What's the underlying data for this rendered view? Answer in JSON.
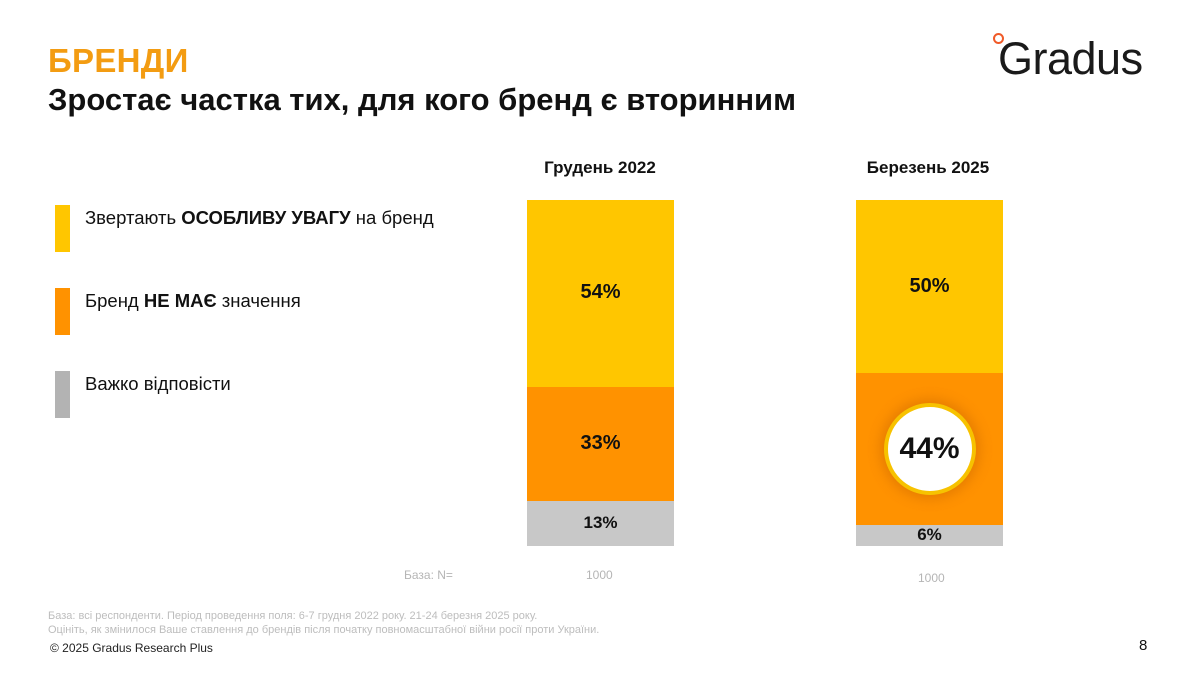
{
  "header": {
    "section": "БРЕНДИ",
    "headline": "Зростає частка тих, для кого бренд є вторинним"
  },
  "logo": {
    "text": "Gradus",
    "accent_color": "#f05a28"
  },
  "legend": [
    {
      "pre": "Звертають ",
      "bold": "ОСОБЛИВУ УВАГУ",
      "post": " на бренд",
      "color": "#ffc600"
    },
    {
      "pre": "Бренд ",
      "bold": "НЕ МАЄ",
      "post": " значення",
      "color": "#ff9200"
    },
    {
      "pre": "",
      "bold": "",
      "post": "Важко відповісти",
      "color": "#b3b3b3"
    }
  ],
  "chart_data": {
    "type": "bar",
    "stacked": true,
    "title": "",
    "xlabel": "",
    "ylabel": "",
    "ylim": [
      0,
      100
    ],
    "grid": false,
    "legend_position": "left",
    "categories": [
      "Грудень 2022",
      "Березень 2025"
    ],
    "series": [
      {
        "name": "Звертають ОСОБЛИВУ УВАГУ на бренд",
        "values": [
          54,
          50
        ],
        "labels": [
          "54%",
          "50%"
        ],
        "color": "#ffc600"
      },
      {
        "name": "Бренд НЕ МАЄ значення",
        "values": [
          33,
          44
        ],
        "labels": [
          "33%",
          "44%"
        ],
        "color": "#ff9200"
      },
      {
        "name": "Важко відповісти",
        "values": [
          13,
          6
        ],
        "labels": [
          "13%",
          "6%"
        ],
        "color": "#c8c8c8"
      }
    ],
    "highlight": {
      "category": "Березень 2025",
      "series": "Бренд НЕ МАЄ значення",
      "label": "44%"
    },
    "base_label": "База: N=",
    "base_values": [
      "1000",
      "1000"
    ]
  },
  "footer": {
    "note1": "База: всі респонденти. Період проведення поля: 6-7 грудня 2022 року. 21-24 березня 2025 року.",
    "note2": "Оцініть, як змінилося Ваше ставлення до брендів після початку повномасштабної війни росії проти України.",
    "copyright": "© 2025 Gradus Research Plus",
    "page_number": "8"
  }
}
